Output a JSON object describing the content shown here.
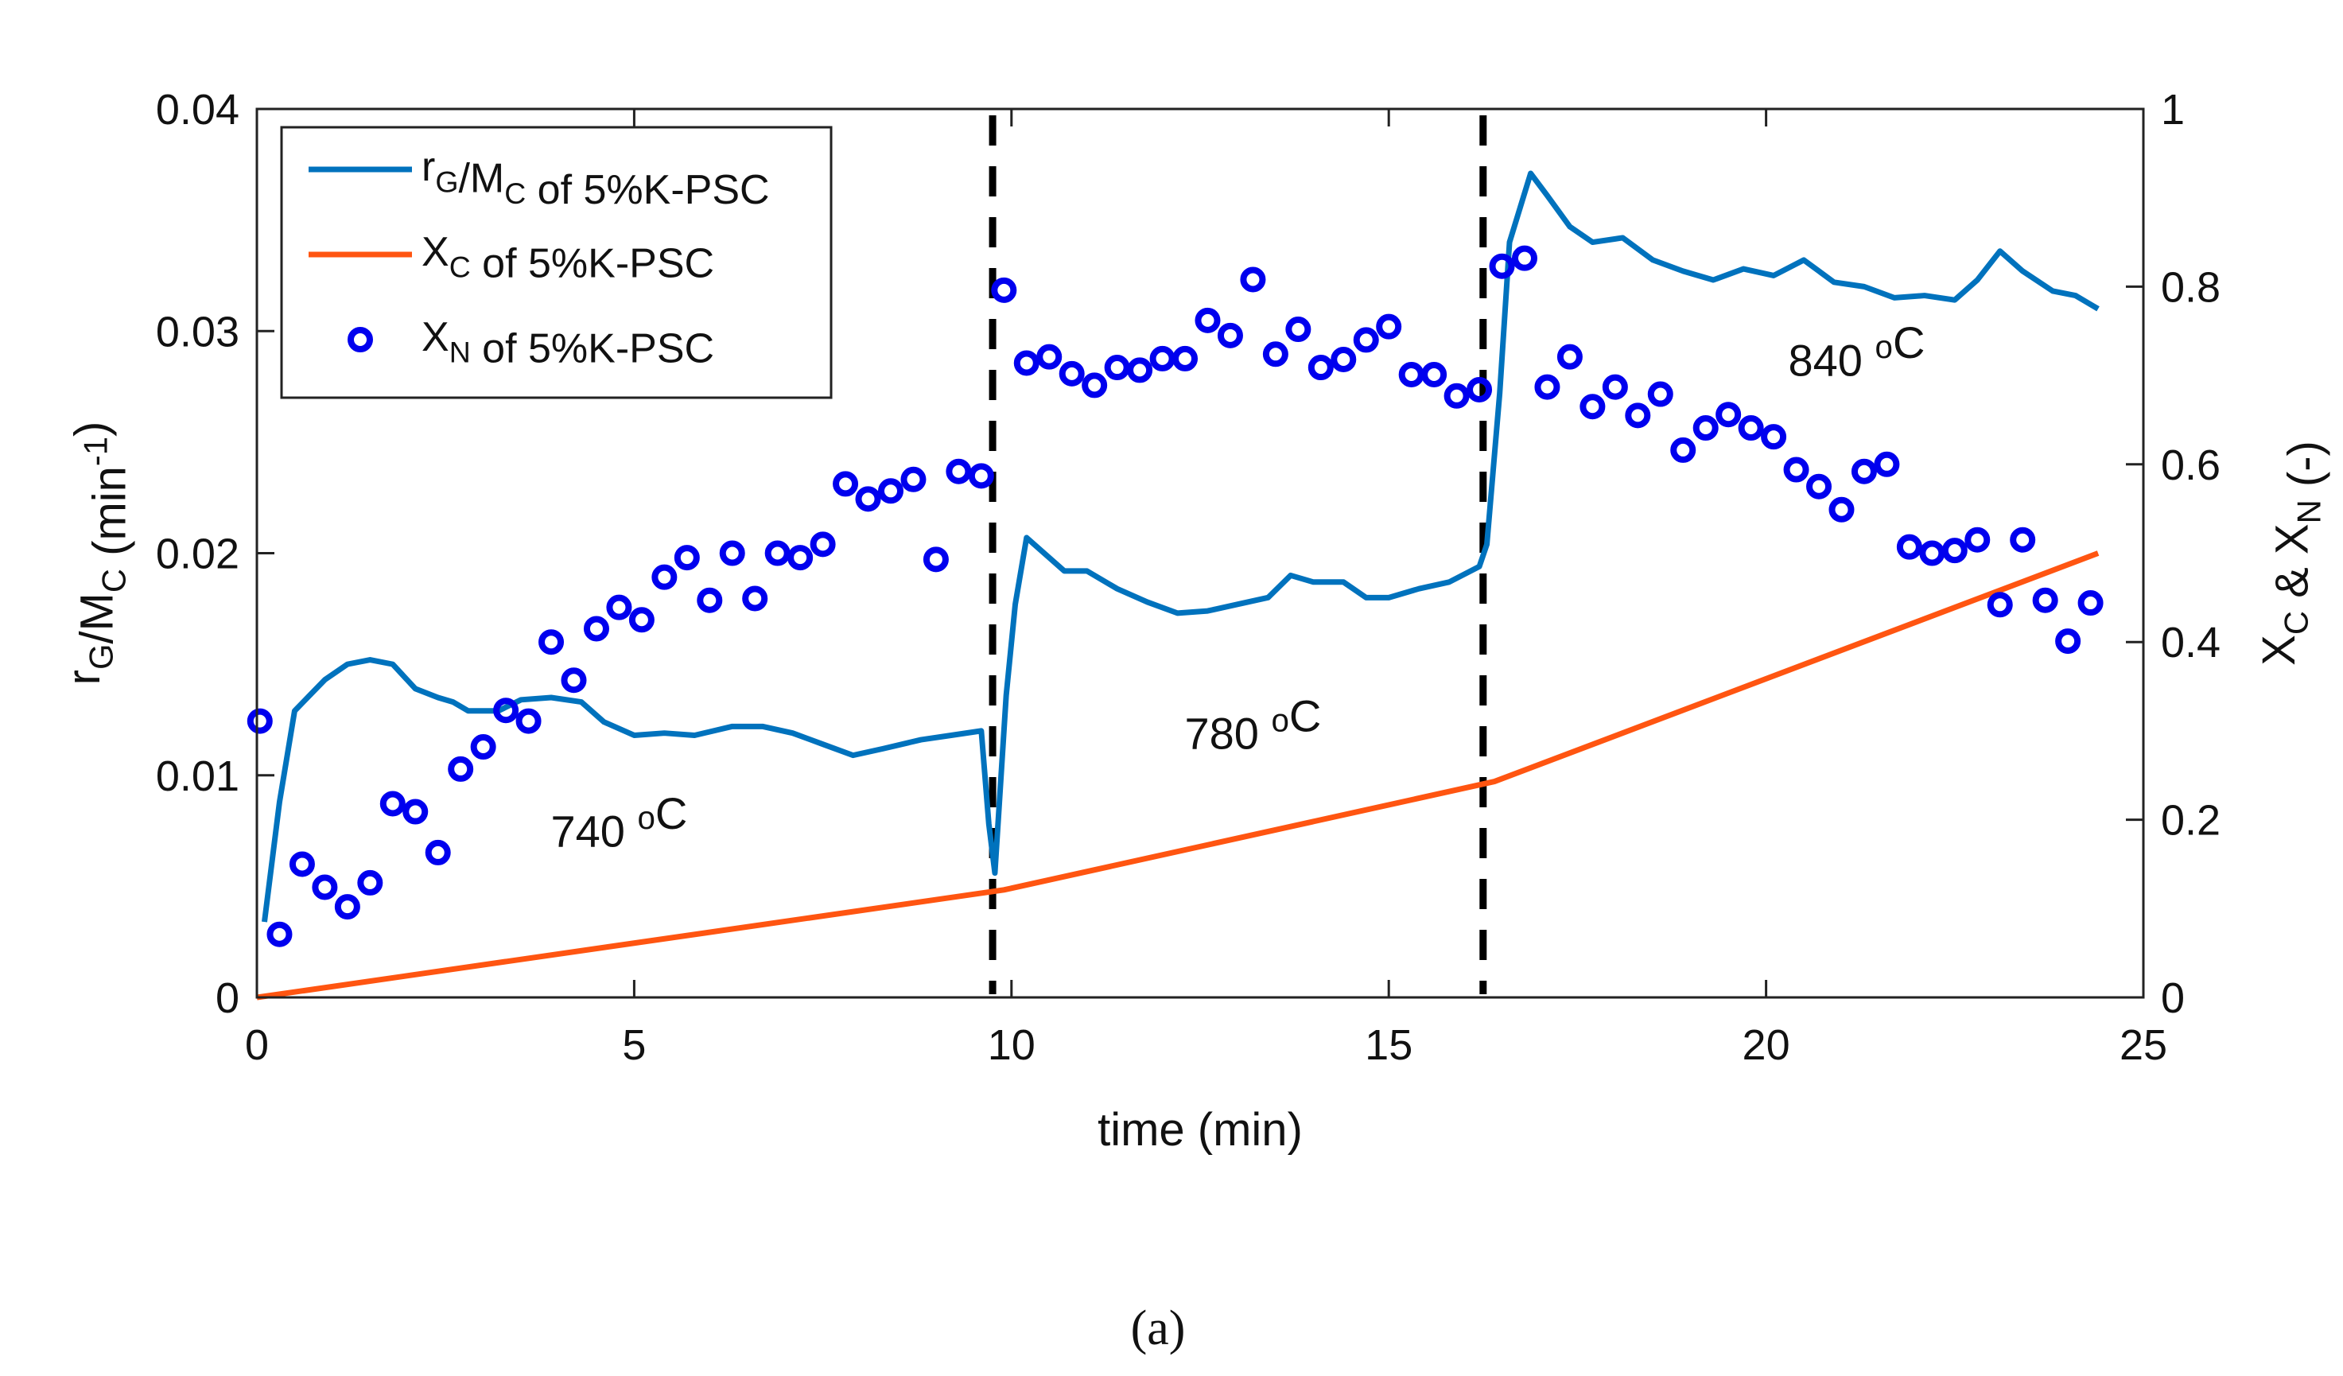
{
  "chart_data": {
    "type": "line",
    "caption": "(a)",
    "xlabel": "time (min)",
    "ylabel_left": [
      {
        "t": "r"
      },
      {
        "t": "G",
        "sub": true
      },
      {
        "t": "/M"
      },
      {
        "t": "C",
        "sub": true
      },
      {
        "t": " (min"
      },
      {
        "t": "-1",
        "sup": true
      },
      {
        "t": ")"
      }
    ],
    "ylabel_right": [
      {
        "t": "X"
      },
      {
        "t": "C",
        "sub": true
      },
      {
        "t": " & X"
      },
      {
        "t": "N",
        "sub": true
      },
      {
        "t": " (-)"
      }
    ],
    "xlim": [
      0,
      25
    ],
    "ylim_left": [
      0,
      0.04
    ],
    "ylim_right": [
      0,
      1
    ],
    "xticks": [
      "0",
      "5",
      "10",
      "15",
      "20",
      "25"
    ],
    "yticks_left": [
      "0",
      "0.01",
      "0.02",
      "0.03",
      "0.04"
    ],
    "yticks_right": [
      "0",
      "0.2",
      "0.4",
      "0.6",
      "0.8",
      "1"
    ],
    "colors": {
      "rG": "#0072BD",
      "XC": "#FF5511",
      "XN": "#0000EE"
    },
    "legend_position": "top-left",
    "series": [
      {
        "name": "rG/MC of 5%K-PSC",
        "axis": "left",
        "style": "line",
        "label": [
          {
            "t": "r"
          },
          {
            "t": "G",
            "sub": true
          },
          {
            "t": "/M"
          },
          {
            "t": "C",
            "sub": true
          },
          {
            "t": " of 5%K-PSC"
          }
        ],
        "points": [
          [
            0.1,
            0.0034
          ],
          [
            0.3,
            0.0088
          ],
          [
            0.5,
            0.0129
          ],
          [
            0.7,
            0.0136
          ],
          [
            0.9,
            0.0143
          ],
          [
            1.2,
            0.015
          ],
          [
            1.5,
            0.0152
          ],
          [
            1.8,
            0.015
          ],
          [
            2.1,
            0.0139
          ],
          [
            2.4,
            0.0135
          ],
          [
            2.6,
            0.0133
          ],
          [
            2.8,
            0.0129
          ],
          [
            3.2,
            0.0129
          ],
          [
            3.5,
            0.0134
          ],
          [
            3.9,
            0.0135
          ],
          [
            4.3,
            0.0133
          ],
          [
            4.6,
            0.0124
          ],
          [
            5.0,
            0.0118
          ],
          [
            5.4,
            0.0119
          ],
          [
            5.8,
            0.0118
          ],
          [
            6.3,
            0.0122
          ],
          [
            6.7,
            0.0122
          ],
          [
            7.1,
            0.0119
          ],
          [
            7.5,
            0.0114
          ],
          [
            7.9,
            0.0109
          ],
          [
            8.3,
            0.0112
          ],
          [
            8.8,
            0.0116
          ],
          [
            9.2,
            0.0118
          ],
          [
            9.6,
            0.012
          ],
          [
            9.7,
            0.0078
          ],
          [
            9.78,
            0.0056
          ],
          [
            9.93,
            0.0136
          ],
          [
            10.05,
            0.0177
          ],
          [
            10.2,
            0.0207
          ],
          [
            10.4,
            0.0201
          ],
          [
            10.7,
            0.0192
          ],
          [
            11.0,
            0.0192
          ],
          [
            11.4,
            0.0184
          ],
          [
            11.8,
            0.0178
          ],
          [
            12.2,
            0.0173
          ],
          [
            12.6,
            0.0174
          ],
          [
            13.0,
            0.0177
          ],
          [
            13.4,
            0.018
          ],
          [
            13.7,
            0.019
          ],
          [
            14.0,
            0.0187
          ],
          [
            14.4,
            0.0187
          ],
          [
            14.7,
            0.018
          ],
          [
            15.0,
            0.018
          ],
          [
            15.4,
            0.0184
          ],
          [
            15.8,
            0.0187
          ],
          [
            16.2,
            0.0194
          ],
          [
            16.3,
            0.0204
          ],
          [
            16.47,
            0.0272
          ],
          [
            16.6,
            0.034
          ],
          [
            16.88,
            0.0371
          ],
          [
            17.1,
            0.0361
          ],
          [
            17.4,
            0.0347
          ],
          [
            17.7,
            0.034
          ],
          [
            18.1,
            0.0342
          ],
          [
            18.5,
            0.0332
          ],
          [
            18.9,
            0.0327
          ],
          [
            19.3,
            0.0323
          ],
          [
            19.7,
            0.0328
          ],
          [
            20.1,
            0.0325
          ],
          [
            20.5,
            0.0332
          ],
          [
            20.9,
            0.0322
          ],
          [
            21.3,
            0.032
          ],
          [
            21.7,
            0.0315
          ],
          [
            22.1,
            0.0316
          ],
          [
            22.5,
            0.0314
          ],
          [
            22.8,
            0.0323
          ],
          [
            23.1,
            0.0336
          ],
          [
            23.4,
            0.0327
          ],
          [
            23.8,
            0.0318
          ],
          [
            24.1,
            0.0316
          ],
          [
            24.4,
            0.031
          ]
        ]
      },
      {
        "name": "XC of 5%K-PSC",
        "axis": "right",
        "style": "line",
        "label": [
          {
            "t": "X"
          },
          {
            "t": "C",
            "sub": true
          },
          {
            "t": " of 5%K-PSC"
          }
        ],
        "points": [
          [
            0,
            0
          ],
          [
            9.9,
            0.121
          ],
          [
            16.4,
            0.243
          ],
          [
            24.4,
            0.5
          ]
        ]
      },
      {
        "name": "XN of 5%K-PSC",
        "axis": "right",
        "style": "marker",
        "label": [
          {
            "t": "X"
          },
          {
            "t": "N",
            "sub": true
          },
          {
            "t": " of 5%K-PSC"
          }
        ],
        "points": [
          [
            0.04,
            0.311
          ],
          [
            0.3,
            0.071
          ],
          [
            0.6,
            0.15
          ],
          [
            0.9,
            0.124
          ],
          [
            1.2,
            0.102
          ],
          [
            1.5,
            0.129
          ],
          [
            1.8,
            0.218
          ],
          [
            2.1,
            0.209
          ],
          [
            2.4,
            0.163
          ],
          [
            2.7,
            0.257
          ],
          [
            3.0,
            0.282
          ],
          [
            3.3,
            0.323
          ],
          [
            3.6,
            0.311
          ],
          [
            3.9,
            0.4
          ],
          [
            4.2,
            0.357
          ],
          [
            4.5,
            0.415
          ],
          [
            4.8,
            0.439
          ],
          [
            5.1,
            0.425
          ],
          [
            5.4,
            0.473
          ],
          [
            5.7,
            0.495
          ],
          [
            6.0,
            0.447
          ],
          [
            6.3,
            0.5
          ],
          [
            6.6,
            0.449
          ],
          [
            6.9,
            0.5
          ],
          [
            7.2,
            0.495
          ],
          [
            7.5,
            0.51
          ],
          [
            7.8,
            0.578
          ],
          [
            8.1,
            0.561
          ],
          [
            8.4,
            0.57
          ],
          [
            8.7,
            0.583
          ],
          [
            9.0,
            0.493
          ],
          [
            9.3,
            0.592
          ],
          [
            9.6,
            0.587
          ],
          [
            9.9,
            0.796
          ],
          [
            10.2,
            0.714
          ],
          [
            10.5,
            0.721
          ],
          [
            10.8,
            0.702
          ],
          [
            11.1,
            0.689
          ],
          [
            11.4,
            0.709
          ],
          [
            11.7,
            0.706
          ],
          [
            12.0,
            0.719
          ],
          [
            12.3,
            0.719
          ],
          [
            12.6,
            0.762
          ],
          [
            12.9,
            0.745
          ],
          [
            13.2,
            0.808
          ],
          [
            13.5,
            0.724
          ],
          [
            13.8,
            0.752
          ],
          [
            14.1,
            0.709
          ],
          [
            14.4,
            0.718
          ],
          [
            14.7,
            0.74
          ],
          [
            15.0,
            0.755
          ],
          [
            15.3,
            0.701
          ],
          [
            15.6,
            0.701
          ],
          [
            15.9,
            0.677
          ],
          [
            16.2,
            0.684
          ],
          [
            16.5,
            0.823
          ],
          [
            16.8,
            0.832
          ],
          [
            17.1,
            0.687
          ],
          [
            17.4,
            0.721
          ],
          [
            17.7,
            0.665
          ],
          [
            18.0,
            0.687
          ],
          [
            18.3,
            0.655
          ],
          [
            18.6,
            0.679
          ],
          [
            18.9,
            0.616
          ],
          [
            19.2,
            0.641
          ],
          [
            19.5,
            0.656
          ],
          [
            19.8,
            0.641
          ],
          [
            20.1,
            0.631
          ],
          [
            20.4,
            0.594
          ],
          [
            20.7,
            0.575
          ],
          [
            21.0,
            0.549
          ],
          [
            21.3,
            0.592
          ],
          [
            21.6,
            0.6
          ],
          [
            21.9,
            0.507
          ],
          [
            22.2,
            0.5
          ],
          [
            22.5,
            0.503
          ],
          [
            22.8,
            0.515
          ],
          [
            23.1,
            0.442
          ],
          [
            23.4,
            0.515
          ],
          [
            23.7,
            0.447
          ],
          [
            24.0,
            0.401
          ],
          [
            24.3,
            0.444
          ]
        ]
      }
    ],
    "vlines": [
      9.75,
      16.25
    ],
    "annotations": [
      {
        "text": "740",
        "unit": "oC",
        "x": 4.8,
        "y": 0.0075
      },
      {
        "text": "780",
        "unit": "oC",
        "x": 13.2,
        "y": 0.0119
      },
      {
        "text": "840",
        "unit": "oC",
        "x": 21.2,
        "y": 0.0287
      }
    ]
  }
}
